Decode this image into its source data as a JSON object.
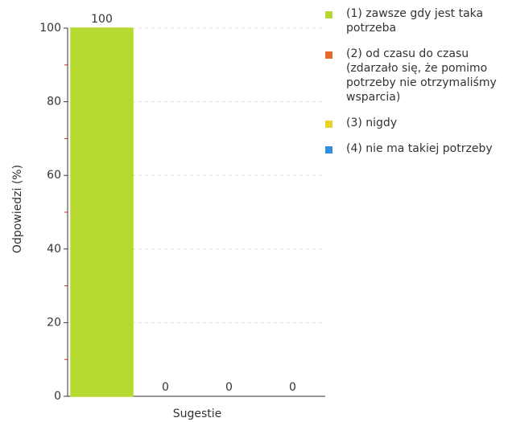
{
  "chart_data": {
    "type": "bar",
    "y_label": "Odpowiedzi (%)",
    "x_label": "Sugestie",
    "categories": [
      "Sugestie"
    ],
    "series": [
      {
        "name": "(1) zawsze gdy jest taka potrzeba",
        "color": "#b5d92e",
        "values": [
          100
        ]
      },
      {
        "name": "(2) od czasu do czasu (zdarzało się, że pomimo potrzeby nie otrzymaliśmy wsparcia)",
        "color": "#e8672c",
        "values": [
          0
        ]
      },
      {
        "name": "(3) nigdy",
        "color": "#e8d42b",
        "values": [
          0
        ]
      },
      {
        "name": "(4) nie ma takiej potrzeby",
        "color": "#2f8ee0",
        "values": [
          0
        ]
      }
    ],
    "ylim": [
      0,
      100
    ],
    "yticks": [
      0,
      20,
      40,
      60,
      80,
      100
    ],
    "yminorticks": [
      10,
      30,
      50,
      70,
      90
    ],
    "grid": true
  }
}
